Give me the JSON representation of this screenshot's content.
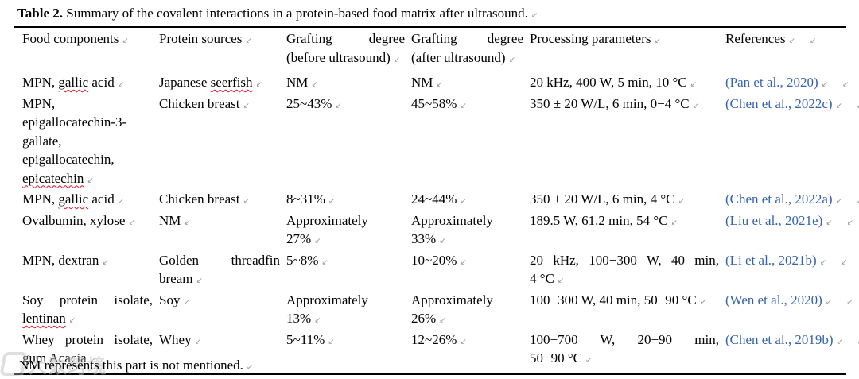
{
  "title": {
    "label": "Table 2.",
    "text": "Summary of the covalent interactions in a protein-based food matrix after ultrasound."
  },
  "table": {
    "columns": [
      "Food components",
      "Protein sources",
      "Grafting degree\n(before ultrasound)",
      "Grafting degree\n(after ultrasound)",
      "Processing parameters",
      "References"
    ],
    "rows": [
      {
        "food": "MPN, gallic acid",
        "protein": "Japanese seerfish",
        "before": "NM",
        "after": "NM",
        "params": "20 kHz, 400 W, 5 min, 10 °C",
        "ref": "(Pan et al., 2020)"
      },
      {
        "food": "MPN,\nepigallocatechin-3-\ngallate,\nepigallocatechin,\nepicatechin",
        "protein": "Chicken breast",
        "before": "25~43%",
        "after": "45~58%",
        "params": "350 ± 20 W/L, 6 min, 0−4 °C",
        "ref": "(Chen et al., 2022c)"
      },
      {
        "food": "MPN, gallic acid",
        "protein": "Chicken breast",
        "before": "8~31%",
        "after": "24~44%",
        "params": "350 ± 20 W/L, 6 min, 4 °C",
        "ref": "(Chen et al., 2022a)"
      },
      {
        "food": "Ovalbumin, xylose",
        "protein": "NM",
        "before": "Approximately\n27%",
        "after": "Approximately\n33%",
        "params": "189.5 W, 61.2 min, 54 °C",
        "ref": "(Liu et al., 2021e)"
      },
      {
        "food": "MPN, dextran",
        "protein": "Golden threadfin\nbream",
        "before": "5~8%",
        "after": "10~20%",
        "params": "20 kHz, 100−300 W, 40 min,\n4 °C",
        "ref": "(Li et al., 2021b)"
      },
      {
        "food": "Soy protein isolate,\nlentinan",
        "protein": "Soy",
        "before": "Approximately\n13%",
        "after": "Approximately\n26%",
        "params": "100−300 W, 40 min, 50−90 °C",
        "ref": "(Wen et al., 2020)"
      },
      {
        "food": "Whey protein isolate,\ngum Acacia",
        "protein": "Whey",
        "before": "5~11%",
        "after": "12~26%",
        "params": "100−700 W, 20−90 min,\n50−90 °C",
        "ref": "(Chen et al., 2019b)"
      }
    ],
    "misspelled": [
      "gallic",
      "seerfish",
      "epicatechin",
      "lentinan"
    ]
  },
  "footnote": "NM represents this part is not mentioned.",
  "watermark": {
    "text": "大数跨境"
  },
  "marks": {
    "eop": "↙"
  },
  "colors": {
    "link": "#3462ae",
    "squiggle": "#e8112d"
  }
}
